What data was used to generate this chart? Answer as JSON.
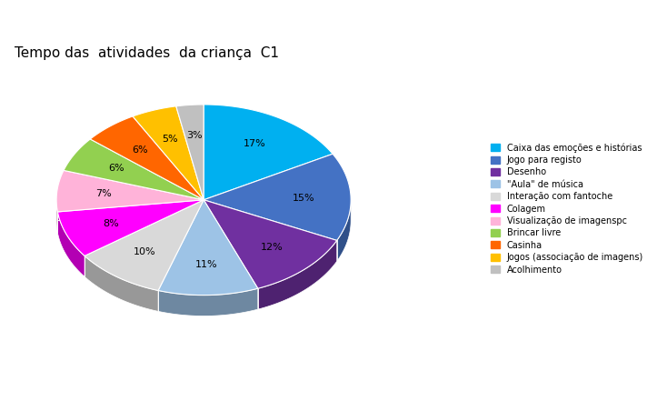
{
  "title": "Tempo das  atividades  da criança  C1",
  "labels": [
    "Caixa das emoções e histórias",
    "Jogo para registo",
    "Desenho",
    "\"Aula\" de música",
    "Interação com fantoche",
    "Colagem",
    "Visualização de imagenspc",
    "Brincar livre",
    "Casinha",
    "Jogos (associação de imagens)",
    "Acolhimento"
  ],
  "values": [
    17,
    15,
    12,
    11,
    10,
    8,
    7,
    6,
    6,
    5,
    3
  ],
  "colors": [
    "#00B0F0",
    "#4472C4",
    "#7030A0",
    "#9DC3E6",
    "#D9D9D9",
    "#FF00FF",
    "#FFB3D9",
    "#92D050",
    "#FF6600",
    "#FFC000",
    "#C0C0C0"
  ],
  "legend_labels": [
    "Caixa das emoções e histórias",
    "Jogo para registo",
    "Desenho",
    "\"Aula\" de música",
    "Interação com fantoche",
    "Colagem",
    "Visualização de imagenspc",
    "Brincar livre",
    "Casinha",
    "Jogos (associação de imagens)",
    "Acolhimento"
  ],
  "startangle": 90,
  "figsize": [
    7.23,
    4.41
  ],
  "dpi": 100
}
